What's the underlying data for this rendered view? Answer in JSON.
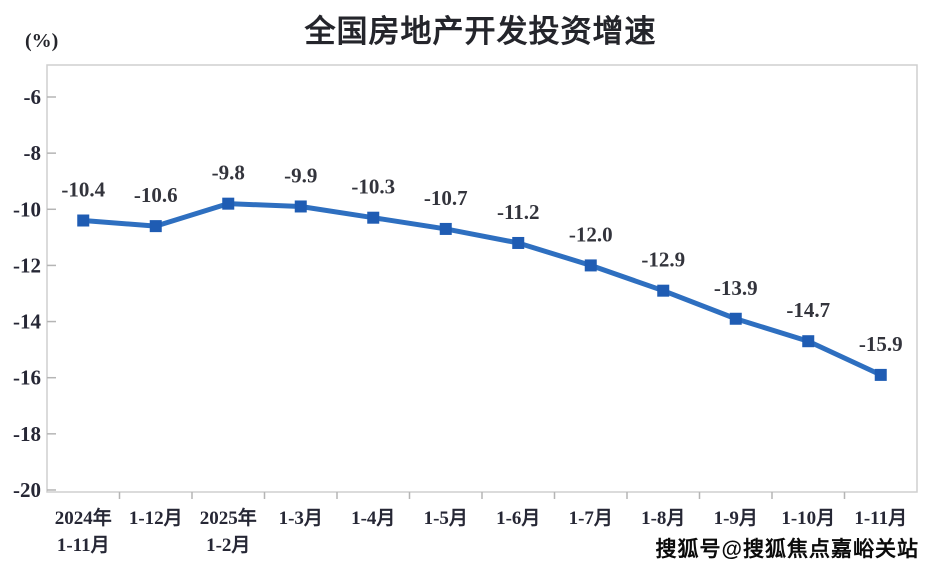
{
  "title": "全国房地产开发投资增速",
  "y_axis_unit": "(%)",
  "watermark": "搜狐号@搜狐焦点嘉峪关站",
  "chart_data": {
    "type": "line",
    "title": "全国房地产开发投资增速",
    "ylabel": "(%)",
    "xlabel": "",
    "categories": [
      "2024年\n1-11月",
      "1-12月",
      "2025年\n1-2月",
      "1-3月",
      "1-4月",
      "1-5月",
      "1-6月",
      "1-7月",
      "1-8月",
      "1-9月",
      "1-10月",
      "1-11月"
    ],
    "series": [
      {
        "name": "全国房地产开发投资增速",
        "values": [
          -10.4,
          -10.6,
          -9.8,
          -9.9,
          -10.3,
          -10.7,
          -11.2,
          -12.0,
          -12.9,
          -13.9,
          -14.7,
          -15.9
        ],
        "labels": [
          "-10.4",
          "-10.6",
          "-9.8",
          "-9.9",
          "-10.3",
          "-10.7",
          "-11.2",
          "-12.0",
          "-12.9",
          "-13.9",
          "-14.7",
          "-15.9"
        ]
      }
    ],
    "yticks": [
      -6,
      -8,
      -10,
      -12,
      -14,
      -16,
      -18,
      -20
    ],
    "ylim": [
      -20.1,
      -4.8
    ],
    "grid": false,
    "legend_position": "none",
    "colors": {
      "line": "#2e6fc0",
      "marker": "#1f5cb3",
      "plot_border": "#cfcfcf",
      "tick": "#b5b5b5",
      "text": "#262735"
    }
  }
}
